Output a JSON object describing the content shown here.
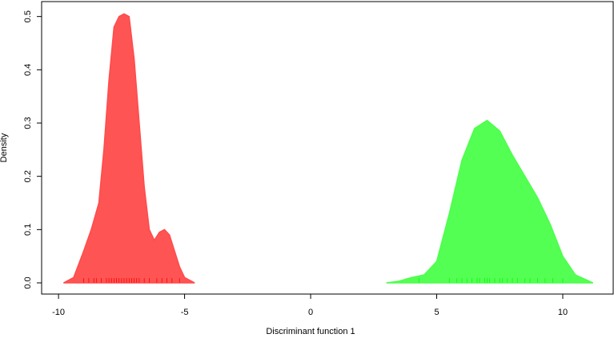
{
  "chart_data": {
    "type": "density",
    "xlabel": "Discriminant function 1",
    "ylabel": "Density",
    "xlim": [
      -10.67,
      12.0
    ],
    "ylim": [
      -0.021,
      0.528
    ],
    "xticks": [
      -10,
      -5,
      0,
      5,
      10
    ],
    "yticks": [
      {
        "value": 0,
        "label": "0.0"
      },
      0.1,
      0.2,
      0.3,
      0.4,
      0.5
    ],
    "series": [
      {
        "color": "#ff4b4b",
        "x": [
          -9.8,
          -9.4,
          -9.0,
          -8.7,
          -8.4,
          -8.2,
          -8.0,
          -7.8,
          -7.6,
          -7.4,
          -7.2,
          -7.0,
          -6.8,
          -6.6,
          -6.4,
          -6.2,
          -6.0,
          -5.8,
          -5.6,
          -5.4,
          -5.2,
          -5.0,
          -4.6
        ],
        "values": [
          0,
          0.01,
          0.06,
          0.1,
          0.15,
          0.25,
          0.38,
          0.48,
          0.5,
          0.505,
          0.5,
          0.42,
          0.3,
          0.18,
          0.1,
          0.08,
          0.095,
          0.1,
          0.09,
          0.06,
          0.03,
          0.01,
          0
        ],
        "rug": [
          -9.0,
          -8.8,
          -8.6,
          -8.5,
          -8.3,
          -8.1,
          -8.0,
          -7.9,
          -7.8,
          -7.7,
          -7.6,
          -7.5,
          -7.4,
          -7.3,
          -7.2,
          -7.1,
          -7.0,
          -6.9,
          -6.8,
          -6.6,
          -6.4,
          -6.1,
          -5.9,
          -5.7,
          -5.5,
          -5.2
        ]
      },
      {
        "color": "#4bff4b",
        "x": [
          3.0,
          3.5,
          4.0,
          4.5,
          5.0,
          5.5,
          6.0,
          6.5,
          7.0,
          7.5,
          8.0,
          8.5,
          9.0,
          9.5,
          10.0,
          10.5,
          11.2
        ],
        "values": [
          0,
          0.003,
          0.01,
          0.015,
          0.04,
          0.13,
          0.23,
          0.29,
          0.305,
          0.285,
          0.24,
          0.2,
          0.16,
          0.11,
          0.05,
          0.015,
          0
        ],
        "rug": [
          4.3,
          5.5,
          5.8,
          6.0,
          6.2,
          6.4,
          6.6,
          6.7,
          6.9,
          7.0,
          7.1,
          7.3,
          7.5,
          7.6,
          7.8,
          8.0,
          8.2,
          8.5,
          8.7,
          9.0,
          9.3,
          9.6,
          10.0
        ]
      }
    ]
  }
}
